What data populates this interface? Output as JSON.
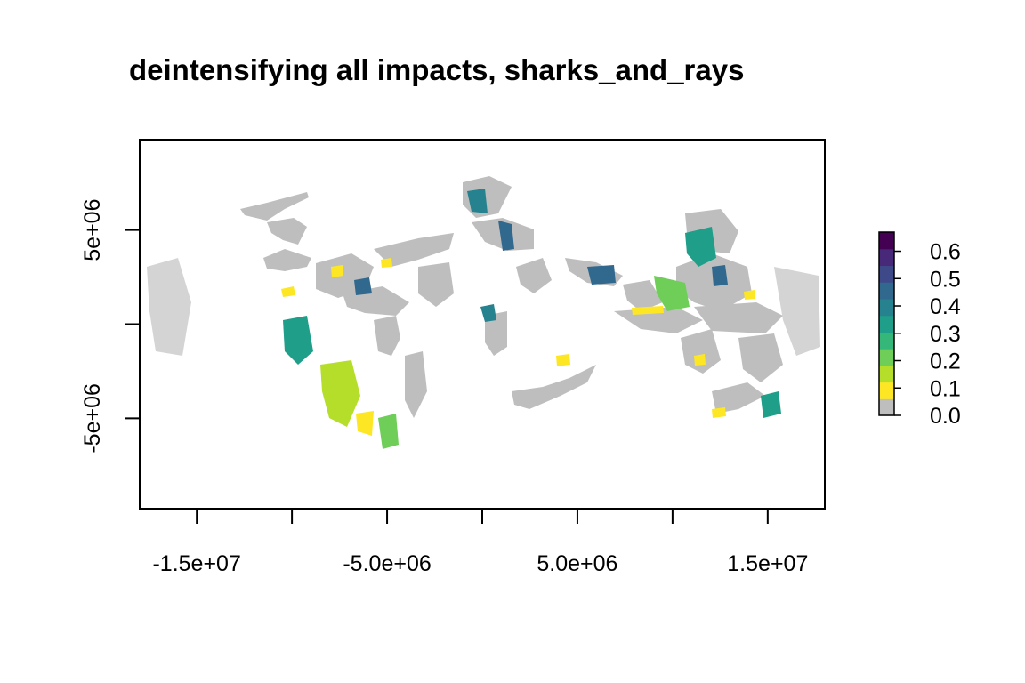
{
  "title": "deintensifying all impacts, sharks_and_rays",
  "map": {
    "x_ticks": [
      {
        "value": -15000000,
        "label": "-1.5e+07"
      },
      {
        "value": -10000000,
        "label": ""
      },
      {
        "value": -5000000,
        "label": "-5.0e+06"
      },
      {
        "value": 0,
        "label": ""
      },
      {
        "value": 5000000,
        "label": "5.0e+06"
      },
      {
        "value": 10000000,
        "label": ""
      },
      {
        "value": 15000000,
        "label": "1.5e+07"
      }
    ],
    "y_ticks": [
      {
        "value": 5000000,
        "label": "5e+06"
      },
      {
        "value": 0,
        "label": ""
      },
      {
        "value": -5000000,
        "label": "-5e+06"
      }
    ],
    "x_range": [
      -18000000,
      18000000
    ],
    "y_range": [
      -9800000,
      9800000
    ]
  },
  "legend": {
    "labels": [
      "0.0",
      "0.1",
      "0.2",
      "0.3",
      "0.4",
      "0.5",
      "0.6"
    ],
    "values": [
      0.0,
      0.1,
      0.2,
      0.3,
      0.4,
      0.5,
      0.6
    ],
    "range": [
      0,
      0.67
    ],
    "colors": [
      "#bebebe",
      "#fde725",
      "#b5de2b",
      "#6ece58",
      "#35b779",
      "#1f9e89",
      "#26828e",
      "#31688e",
      "#3e4989",
      "#482878",
      "#440154"
    ]
  },
  "colors": {
    "land_gap": "#bebebe",
    "frame": "#000000"
  }
}
